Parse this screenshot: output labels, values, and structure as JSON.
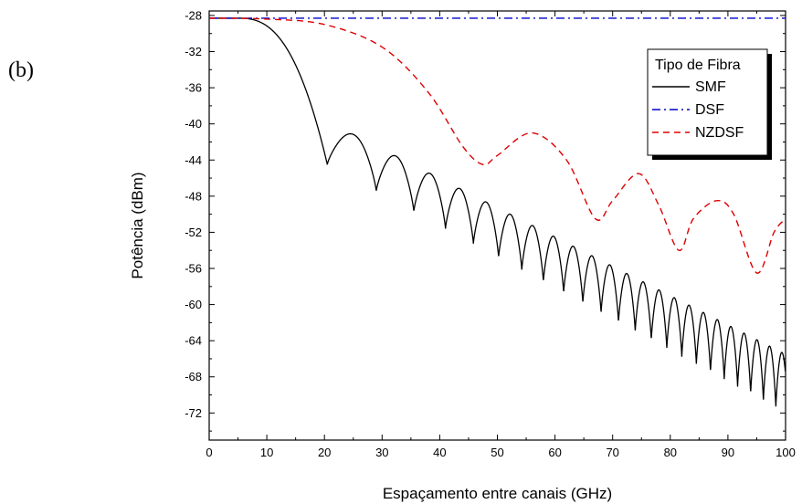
{
  "panel_label": "(b)",
  "chart_data": {
    "type": "line",
    "title": "",
    "xlabel": "Espaçamento entre canais (GHz)",
    "ylabel": "Potência (dBm)",
    "xlim": [
      0,
      100
    ],
    "ylim": [
      -75,
      -27.5
    ],
    "x_ticks": [
      0,
      10,
      20,
      30,
      40,
      50,
      60,
      70,
      80,
      90,
      100
    ],
    "y_ticks": [
      -28,
      -32,
      -36,
      -40,
      -44,
      -48,
      -52,
      -56,
      -60,
      -64,
      -68,
      -72
    ],
    "grid": false,
    "legend": {
      "title": "Tipo de Fibra",
      "position": "top-right"
    },
    "series": [
      {
        "name": "SMF",
        "color": "#000000",
        "style": "solid",
        "description": "sin^2-like oscillation; minima at about x = 20.5, 29, 35.5, 41, 46, 50.5, 55, ... (spacing shrinking), decaying envelope",
        "start": [
          0,
          -28.3
        ],
        "flat_until": 8,
        "first_min": [
          20.5,
          -44.5
        ],
        "first_max": [
          24.5,
          -41.0
        ],
        "end": [
          100,
          -72.0
        ]
      },
      {
        "name": "DSF",
        "color": "#0000cc",
        "style": "dash-dot",
        "x": [
          0,
          100
        ],
        "y": [
          -28.3,
          -28.3
        ]
      },
      {
        "name": "NZDSF",
        "color": "#dd0000",
        "style": "dashed",
        "x": [
          0,
          10,
          20,
          30,
          38,
          44,
          47.5,
          50,
          56,
          62,
          67,
          70,
          74.5,
          78,
          81.5,
          84,
          88,
          91,
          95,
          98,
          100
        ],
        "y": [
          -28.3,
          -28.4,
          -29.0,
          -31.5,
          -36.5,
          -42.5,
          -44.5,
          -43.5,
          -41.0,
          -44.0,
          -50.5,
          -48.5,
          -45.5,
          -49.0,
          -54.0,
          -50.5,
          -48.5,
          -50.0,
          -56.5,
          -52.0,
          -50.5
        ]
      }
    ]
  }
}
